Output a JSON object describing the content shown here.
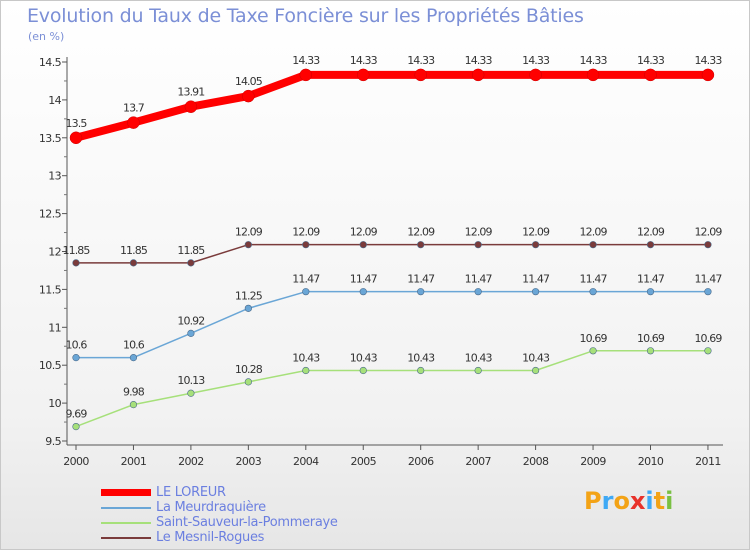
{
  "header": {
    "title": "Evolution du Taux de Taxe Foncière sur les Propriétés Bâties",
    "unit": "(en %)"
  },
  "logo": {
    "text": "Proxiti",
    "colors": [
      "#f3a316",
      "#3fa9f5",
      "#f3a316",
      "#e8322b",
      "#3fa9f5",
      "#f3a316",
      "#7ac043"
    ]
  },
  "chart_data": {
    "type": "line",
    "categories": [
      "2000",
      "2001",
      "2002",
      "2003",
      "2004",
      "2005",
      "2006",
      "2007",
      "2008",
      "2009",
      "2010",
      "2011"
    ],
    "ylim": [
      9.5,
      14.5
    ],
    "yticks": [
      "9.5",
      "10",
      "10.5",
      "11",
      "11.5",
      "12",
      "12.5",
      "13",
      "13.5",
      "14",
      "14.5"
    ],
    "grid": false,
    "legend_position": "bottom-left",
    "series": [
      {
        "name": "LE LOREUR",
        "color": "#ff0000",
        "values": [
          13.5,
          13.7,
          13.91,
          14.05,
          14.33,
          14.33,
          14.33,
          14.33,
          14.33,
          14.33,
          14.33,
          14.33
        ],
        "labels": [
          "13.5",
          "13.7",
          "13.91",
          "14.05",
          "14.33",
          "14.33",
          "14.33",
          "14.33",
          "14.33",
          "14.33",
          "14.33",
          "14.33"
        ]
      },
      {
        "name": "La Meurdraquière",
        "color": "#6aa6d6",
        "values": [
          10.6,
          10.6,
          10.92,
          11.25,
          11.47,
          11.47,
          11.47,
          11.47,
          11.47,
          11.47,
          11.47,
          11.47
        ],
        "labels": [
          "10.6",
          "10.6",
          "10.92",
          "11.25",
          "11.47",
          "11.47",
          "11.47",
          "11.47",
          "11.47",
          "11.47",
          "11.47",
          "11.47"
        ]
      },
      {
        "name": "Saint-Sauveur-la-Pommeraye",
        "color": "#a6e07a",
        "values": [
          9.69,
          9.98,
          10.13,
          10.28,
          10.43,
          10.43,
          10.43,
          10.43,
          10.43,
          10.69,
          10.69,
          10.69
        ],
        "labels": [
          "9.69",
          "9.98",
          "10.13",
          "10.28",
          "10.43",
          "10.43",
          "10.43",
          "10.43",
          "10.43",
          "10.69",
          "10.69",
          "10.69"
        ]
      },
      {
        "name": "Le Mesnil-Rogues",
        "color": "#7a3b3b",
        "values": [
          11.85,
          11.85,
          11.85,
          12.09,
          12.09,
          12.09,
          12.09,
          12.09,
          12.09,
          12.09,
          12.09,
          12.09
        ],
        "labels": [
          "11.85",
          "11.85",
          "11.85",
          "12.09",
          "12.09",
          "12.09",
          "12.09",
          "12.09",
          "12.09",
          "12.09",
          "12.09",
          "12.09"
        ]
      }
    ]
  }
}
